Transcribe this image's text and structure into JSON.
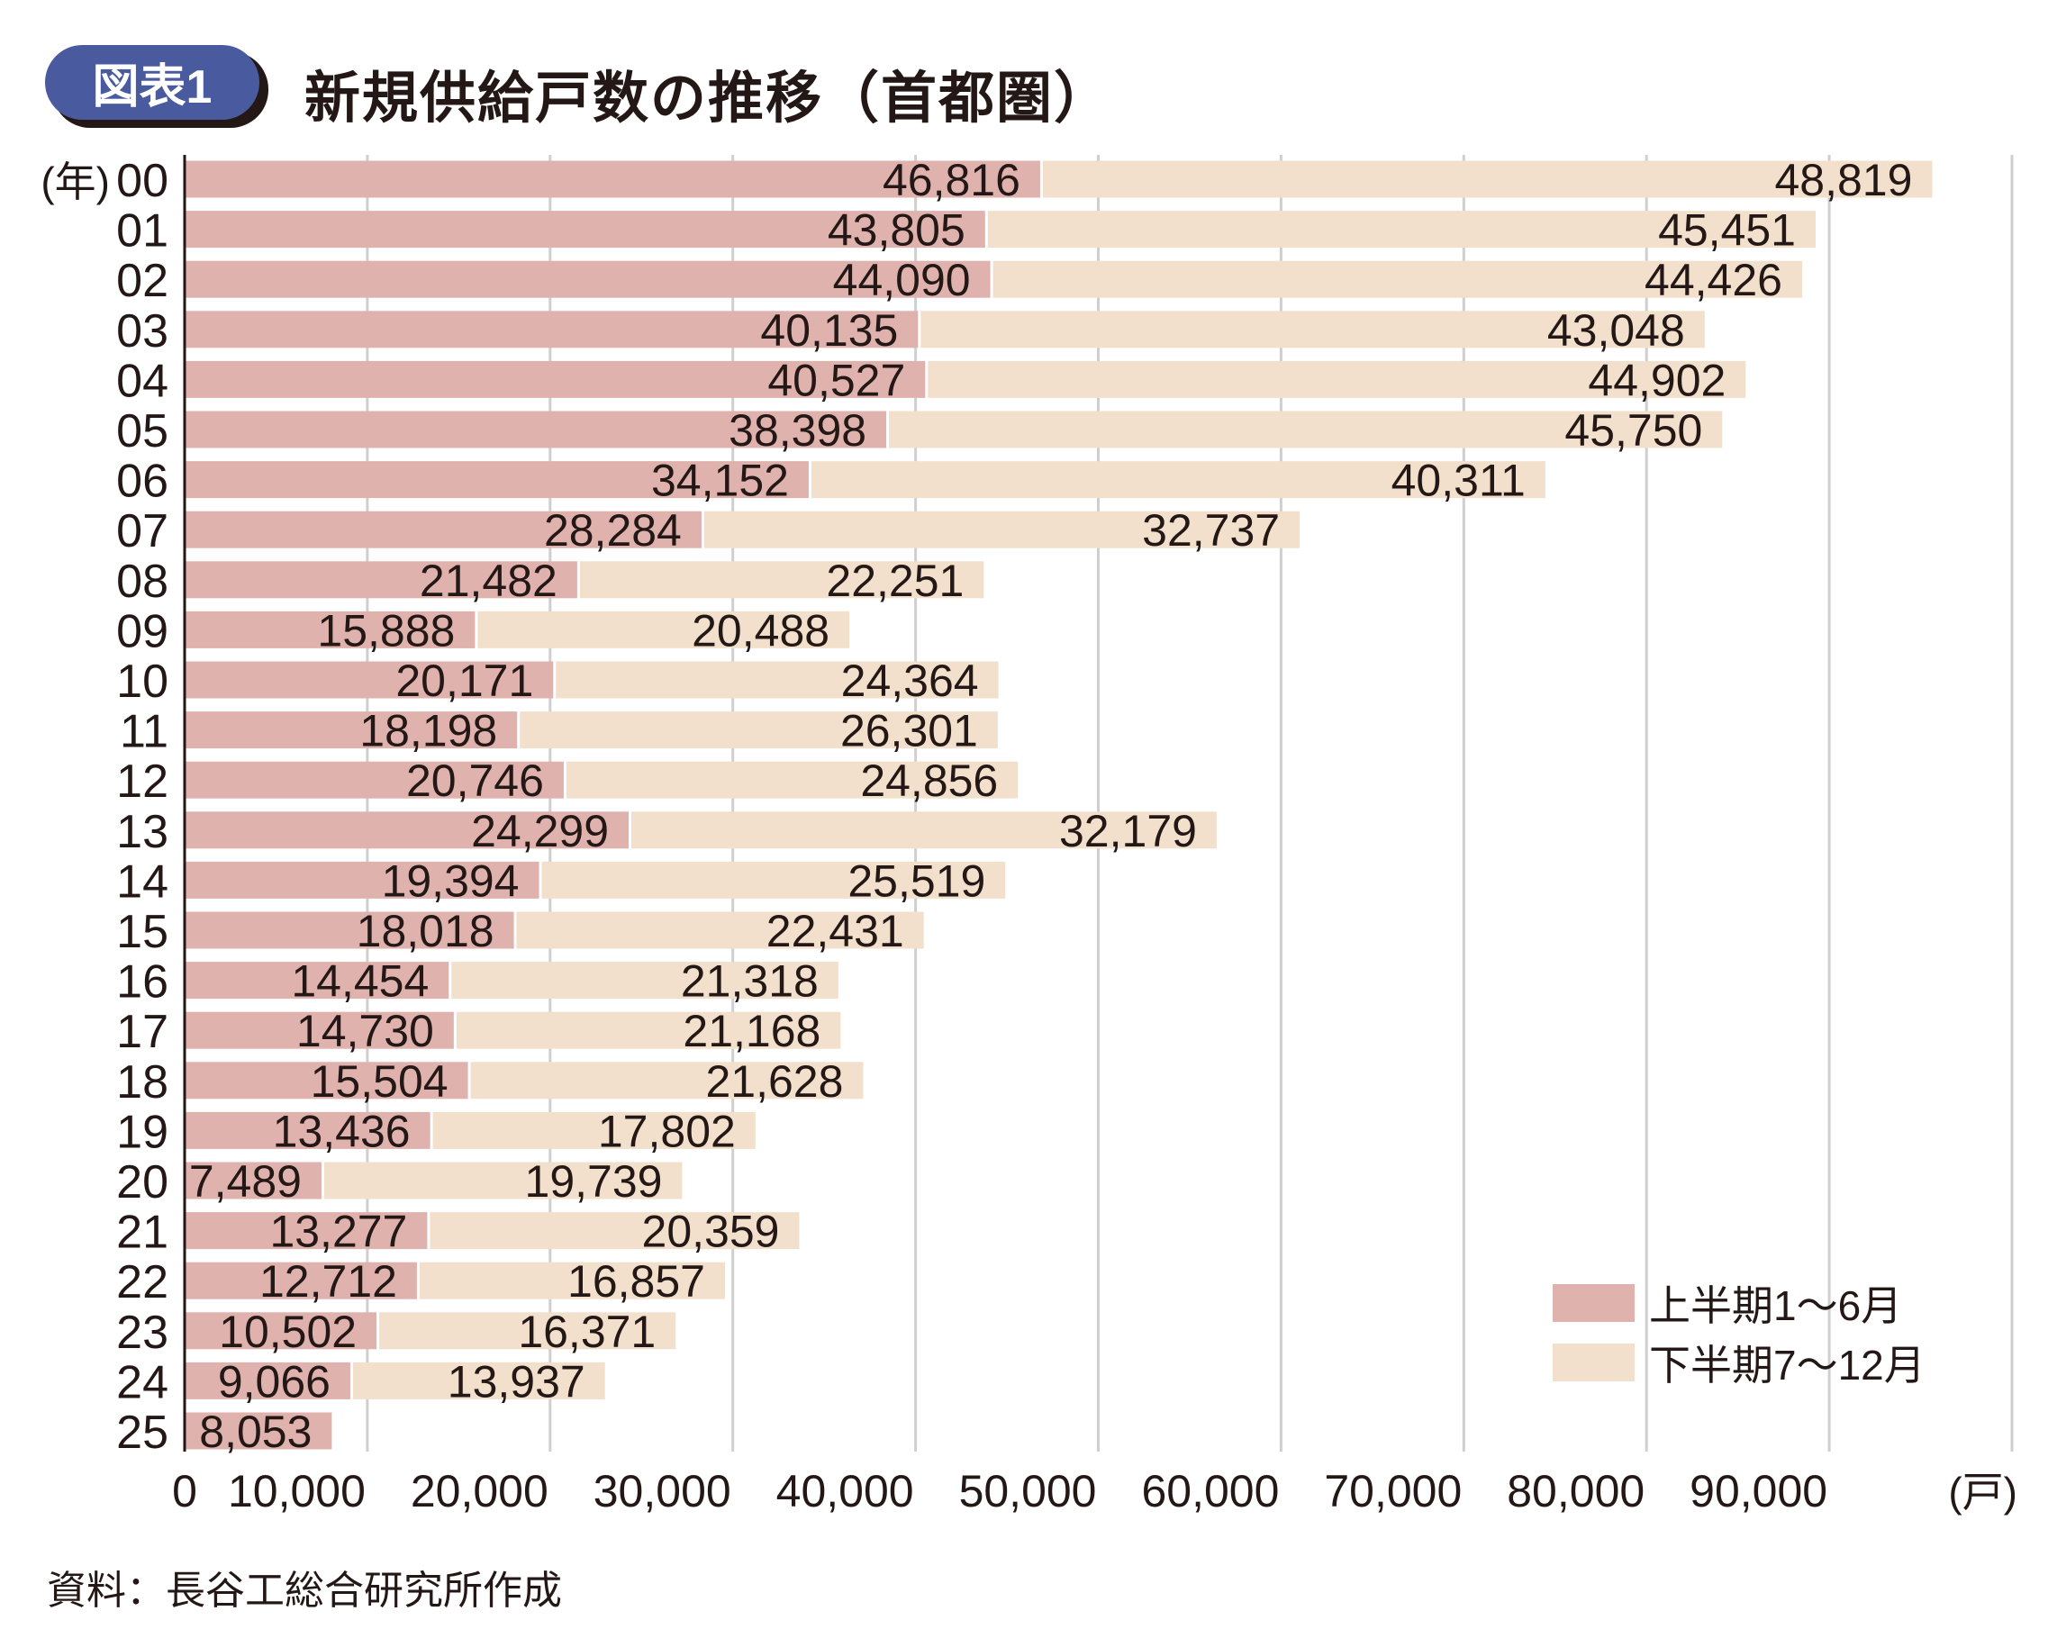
{
  "header": {
    "badge": "図表1",
    "title": "新規供給戸数の推移（首都圏）"
  },
  "source": "資料：長谷工総合研究所作成",
  "chart_data": {
    "type": "bar",
    "orientation": "horizontal",
    "stacked": true,
    "title": "新規供給戸数の推移（首都圏）",
    "ylabel": "(年)",
    "xlabel": "(戸)",
    "categories": [
      "00",
      "01",
      "02",
      "03",
      "04",
      "05",
      "06",
      "07",
      "08",
      "09",
      "10",
      "11",
      "12",
      "13",
      "14",
      "15",
      "16",
      "17",
      "18",
      "19",
      "20",
      "21",
      "22",
      "23",
      "24",
      "25"
    ],
    "series": [
      {
        "name": "上半期1～6月",
        "color": "#e0b2ae",
        "values": [
          46816,
          43805,
          44090,
          40135,
          40527,
          38398,
          34152,
          28284,
          21482,
          15888,
          20171,
          18198,
          20746,
          24299,
          19394,
          18018,
          14454,
          14730,
          15504,
          13436,
          7489,
          13277,
          12712,
          10502,
          9066,
          8053
        ]
      },
      {
        "name": "下半期7～12月",
        "color": "#f2e0cc",
        "values": [
          48819,
          45451,
          44426,
          43048,
          44902,
          45750,
          40311,
          32737,
          22251,
          20488,
          24364,
          26301,
          24856,
          32179,
          25519,
          22431,
          21318,
          21168,
          21628,
          17802,
          19739,
          20359,
          16857,
          16371,
          13937,
          null
        ]
      }
    ],
    "xlim": [
      0,
      100000
    ],
    "xticks": [
      0,
      10000,
      20000,
      30000,
      40000,
      50000,
      60000,
      70000,
      80000,
      90000
    ],
    "xtick_labels": [
      "0",
      "10,000",
      "20,000",
      "30,000",
      "40,000",
      "50,000",
      "60,000",
      "70,000",
      "80,000",
      "90,000"
    ],
    "grid": true,
    "legend_position": "bottom-right"
  }
}
